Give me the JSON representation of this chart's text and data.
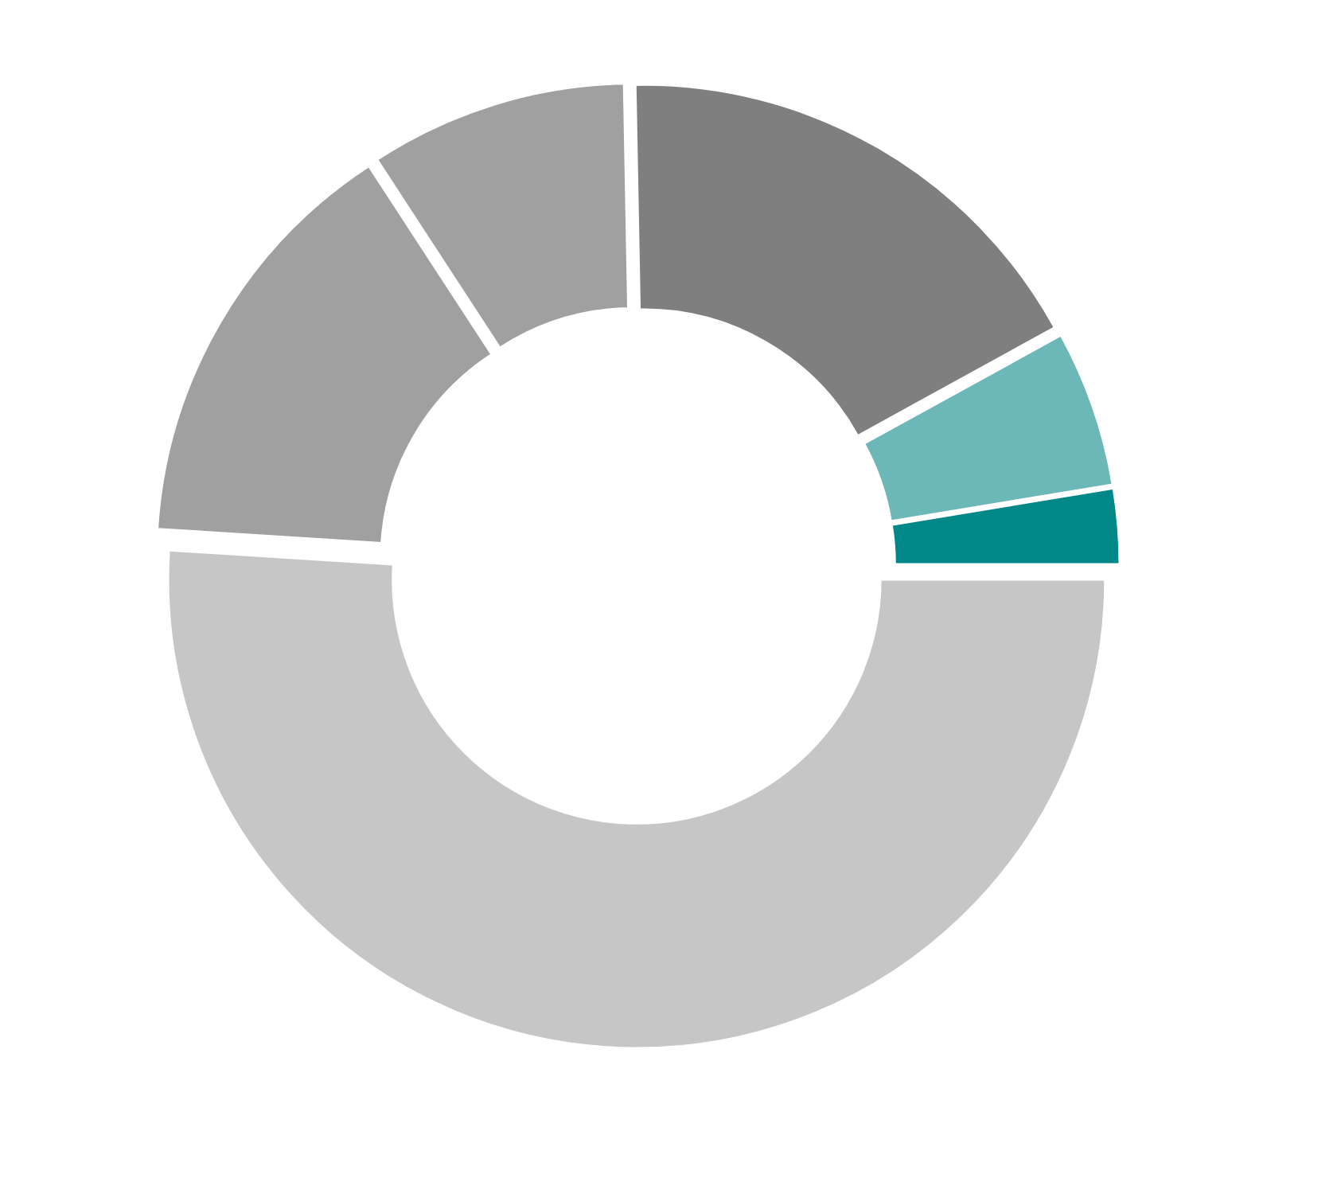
{
  "chart_data": {
    "type": "donut",
    "categories": [
      null,
      null,
      null,
      null,
      null,
      null
    ],
    "values": [
      2.6,
      5.4,
      17.3,
      8.9,
      14.8,
      51.0
    ],
    "colors": [
      "#008888",
      "#6cb8b8",
      "#7f7f7f",
      "#a0a0a0",
      "#a0a0a0",
      "#c6c6c6"
    ]
  }
}
